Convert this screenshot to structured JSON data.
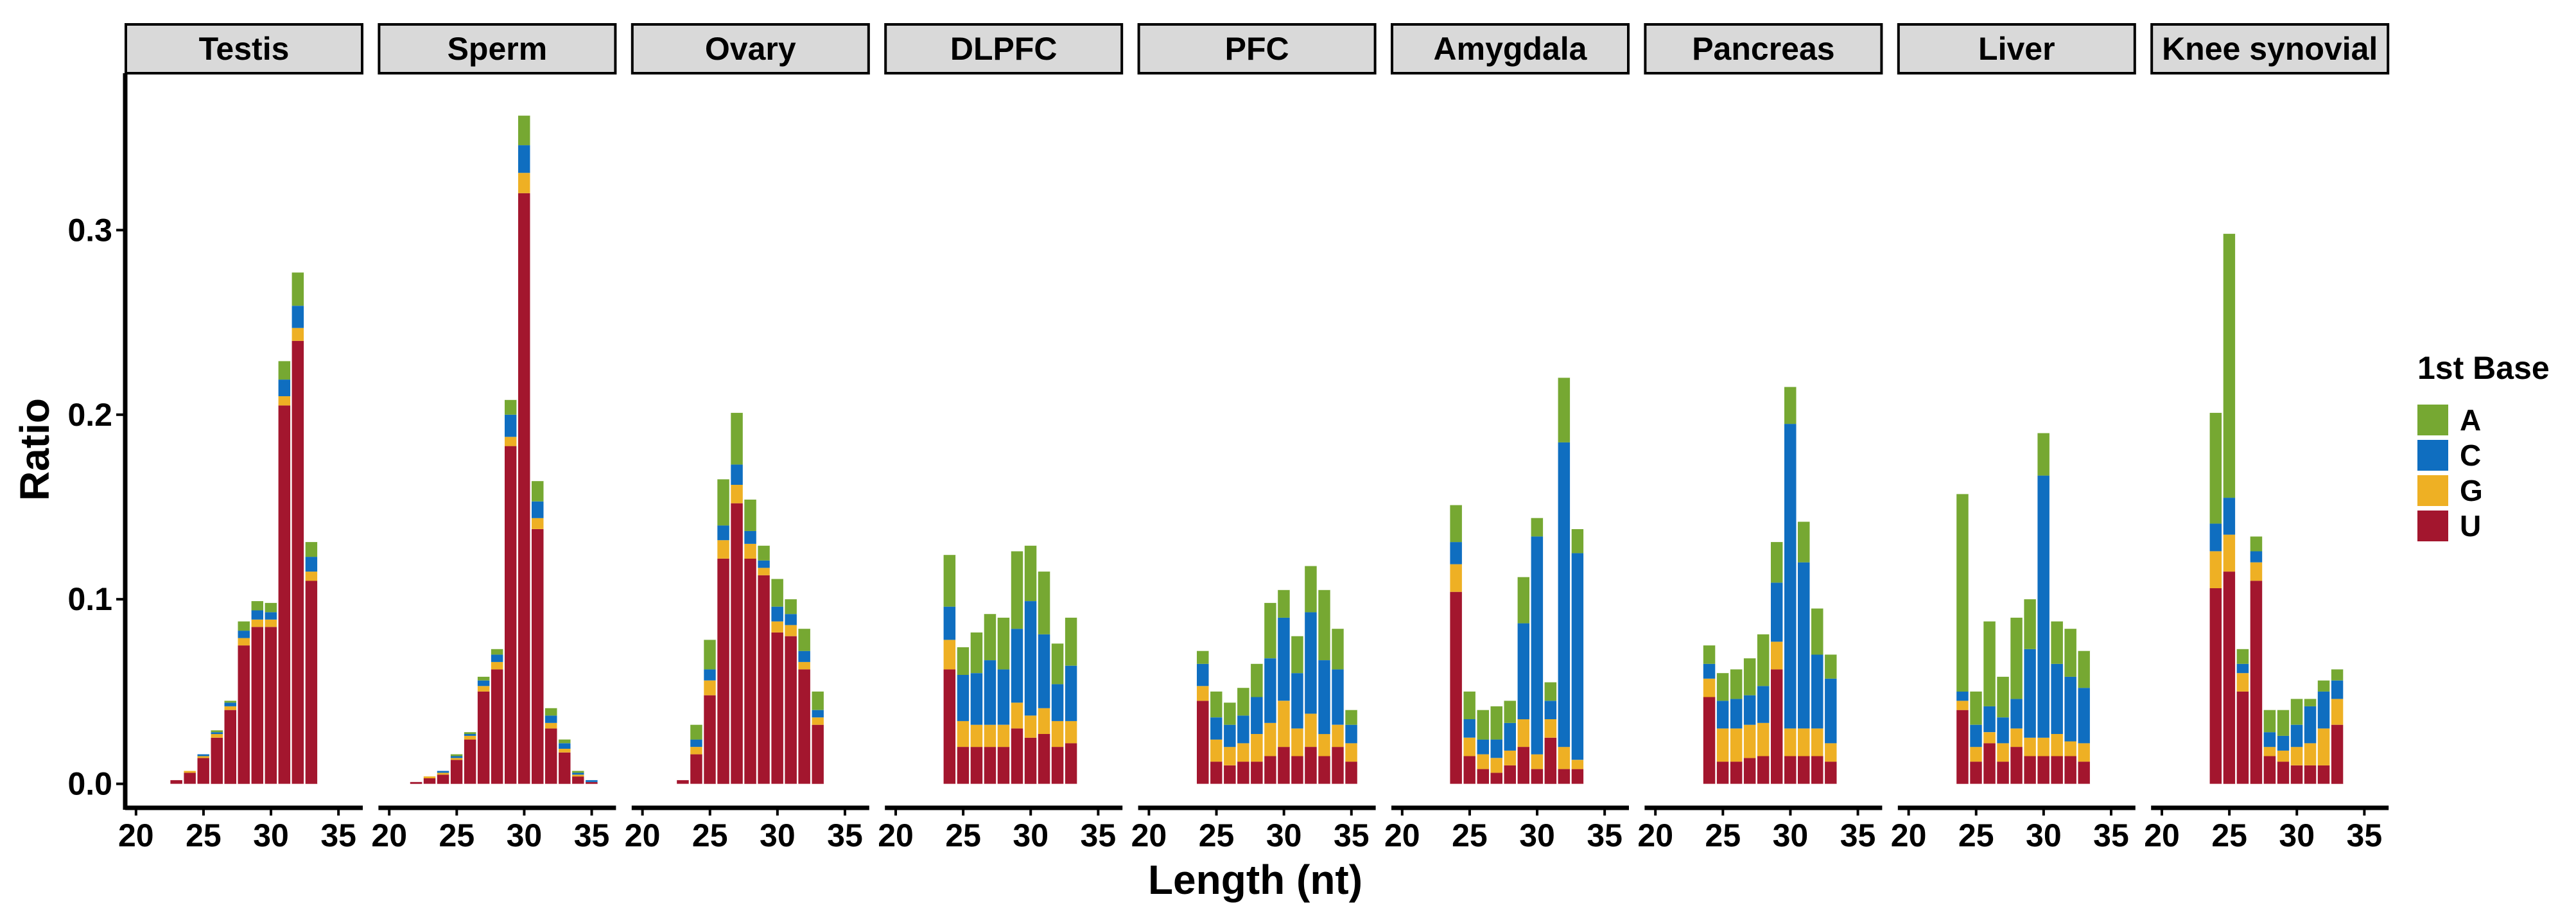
{
  "chart_data": {
    "type": "stacked_bar_faceted",
    "xlabel": "Length (nt)",
    "ylabel": "Ratio",
    "ylim": [
      -0.013,
      0.385
    ],
    "yticks": [
      0.0,
      0.1,
      0.2,
      0.3
    ],
    "ytick_labels": [
      "0.0",
      "0.1",
      "0.2",
      "0.3"
    ],
    "xlim": [
      19.2,
      36.8
    ],
    "xticks": [
      20,
      25,
      30,
      35
    ],
    "xtick_labels": [
      "20",
      "25",
      "30",
      "35"
    ],
    "legend": {
      "title": "1st Base",
      "position": "right",
      "items": [
        {
          "label": "A",
          "color": "#76A832"
        },
        {
          "label": "C",
          "color": "#0F6EC0"
        },
        {
          "label": "G",
          "color": "#EEB024"
        },
        {
          "label": "U",
          "color": "#A3162E"
        }
      ]
    },
    "series_order": [
      "U",
      "G",
      "C",
      "A"
    ],
    "facets": [
      {
        "name": "Testis",
        "bars": [
          {
            "x": 23,
            "U": 0.002,
            "G": 0,
            "C": 0,
            "A": 0
          },
          {
            "x": 24,
            "U": 0.006,
            "G": 0.001,
            "C": 0,
            "A": 0
          },
          {
            "x": 25,
            "U": 0.014,
            "G": 0.001,
            "C": 0.001,
            "A": 0
          },
          {
            "x": 26,
            "U": 0.025,
            "G": 0.002,
            "C": 0.001,
            "A": 0.001
          },
          {
            "x": 27,
            "U": 0.04,
            "G": 0.002,
            "C": 0.002,
            "A": 0.001
          },
          {
            "x": 28,
            "U": 0.075,
            "G": 0.004,
            "C": 0.004,
            "A": 0.005
          },
          {
            "x": 29,
            "U": 0.085,
            "G": 0.004,
            "C": 0.005,
            "A": 0.005
          },
          {
            "x": 30,
            "U": 0.085,
            "G": 0.004,
            "C": 0.004,
            "A": 0.005
          },
          {
            "x": 31,
            "U": 0.205,
            "G": 0.005,
            "C": 0.009,
            "A": 0.01
          },
          {
            "x": 32,
            "U": 0.24,
            "G": 0.007,
            "C": 0.012,
            "A": 0.018
          },
          {
            "x": 33,
            "U": 0.11,
            "G": 0.005,
            "C": 0.008,
            "A": 0.008
          }
        ]
      },
      {
        "name": "Sperm",
        "bars": [
          {
            "x": 22,
            "U": 0.001,
            "G": 0,
            "C": 0,
            "A": 0
          },
          {
            "x": 23,
            "U": 0.003,
            "G": 0.001,
            "C": 0,
            "A": 0
          },
          {
            "x": 24,
            "U": 0.005,
            "G": 0.001,
            "C": 0.001,
            "A": 0
          },
          {
            "x": 25,
            "U": 0.013,
            "G": 0.001,
            "C": 0.001,
            "A": 0.001
          },
          {
            "x": 26,
            "U": 0.024,
            "G": 0.002,
            "C": 0.001,
            "A": 0.001
          },
          {
            "x": 27,
            "U": 0.05,
            "G": 0.003,
            "C": 0.003,
            "A": 0.002
          },
          {
            "x": 28,
            "U": 0.062,
            "G": 0.004,
            "C": 0.004,
            "A": 0.003
          },
          {
            "x": 29,
            "U": 0.183,
            "G": 0.005,
            "C": 0.012,
            "A": 0.008
          },
          {
            "x": 30,
            "U": 0.32,
            "G": 0.011,
            "C": 0.015,
            "A": 0.016
          },
          {
            "x": 31,
            "U": 0.138,
            "G": 0.006,
            "C": 0.009,
            "A": 0.011
          },
          {
            "x": 32,
            "U": 0.03,
            "G": 0.003,
            "C": 0.004,
            "A": 0.004
          },
          {
            "x": 33,
            "U": 0.017,
            "G": 0.002,
            "C": 0.003,
            "A": 0.002
          },
          {
            "x": 34,
            "U": 0.004,
            "G": 0.001,
            "C": 0.001,
            "A": 0.001
          },
          {
            "x": 35,
            "U": 0.001,
            "G": 0,
            "C": 0.001,
            "A": 0
          }
        ]
      },
      {
        "name": "Ovary",
        "bars": [
          {
            "x": 23,
            "U": 0.002,
            "G": 0,
            "C": 0,
            "A": 0
          },
          {
            "x": 24,
            "U": 0.016,
            "G": 0.004,
            "C": 0.004,
            "A": 0.008
          },
          {
            "x": 25,
            "U": 0.048,
            "G": 0.008,
            "C": 0.006,
            "A": 0.016
          },
          {
            "x": 26,
            "U": 0.122,
            "G": 0.01,
            "C": 0.008,
            "A": 0.025
          },
          {
            "x": 27,
            "U": 0.152,
            "G": 0.01,
            "C": 0.011,
            "A": 0.028
          },
          {
            "x": 28,
            "U": 0.122,
            "G": 0.008,
            "C": 0.007,
            "A": 0.017
          },
          {
            "x": 29,
            "U": 0.113,
            "G": 0.004,
            "C": 0.004,
            "A": 0.008
          },
          {
            "x": 30,
            "U": 0.082,
            "G": 0.006,
            "C": 0.008,
            "A": 0.015
          },
          {
            "x": 31,
            "U": 0.08,
            "G": 0.006,
            "C": 0.006,
            "A": 0.008
          },
          {
            "x": 32,
            "U": 0.062,
            "G": 0.004,
            "C": 0.006,
            "A": 0.012
          },
          {
            "x": 33,
            "U": 0.032,
            "G": 0.004,
            "C": 0.004,
            "A": 0.01
          }
        ]
      },
      {
        "name": "DLPFC",
        "bars": [
          {
            "x": 24,
            "U": 0.062,
            "G": 0.016,
            "C": 0.018,
            "A": 0.028
          },
          {
            "x": 25,
            "U": 0.02,
            "G": 0.014,
            "C": 0.025,
            "A": 0.015
          },
          {
            "x": 26,
            "U": 0.02,
            "G": 0.012,
            "C": 0.028,
            "A": 0.022
          },
          {
            "x": 27,
            "U": 0.02,
            "G": 0.012,
            "C": 0.035,
            "A": 0.025
          },
          {
            "x": 28,
            "U": 0.02,
            "G": 0.012,
            "C": 0.03,
            "A": 0.028
          },
          {
            "x": 29,
            "U": 0.03,
            "G": 0.014,
            "C": 0.04,
            "A": 0.042
          },
          {
            "x": 30,
            "U": 0.025,
            "G": 0.012,
            "C": 0.062,
            "A": 0.03
          },
          {
            "x": 31,
            "U": 0.027,
            "G": 0.014,
            "C": 0.04,
            "A": 0.034
          },
          {
            "x": 32,
            "U": 0.02,
            "G": 0.014,
            "C": 0.02,
            "A": 0.022
          },
          {
            "x": 33,
            "U": 0.022,
            "G": 0.012,
            "C": 0.03,
            "A": 0.026
          }
        ]
      },
      {
        "name": "PFC",
        "bars": [
          {
            "x": 24,
            "U": 0.045,
            "G": 0.008,
            "C": 0.012,
            "A": 0.007
          },
          {
            "x": 25,
            "U": 0.012,
            "G": 0.012,
            "C": 0.012,
            "A": 0.014
          },
          {
            "x": 26,
            "U": 0.01,
            "G": 0.01,
            "C": 0.012,
            "A": 0.012
          },
          {
            "x": 27,
            "U": 0.012,
            "G": 0.01,
            "C": 0.015,
            "A": 0.015
          },
          {
            "x": 28,
            "U": 0.012,
            "G": 0.015,
            "C": 0.02,
            "A": 0.018
          },
          {
            "x": 29,
            "U": 0.015,
            "G": 0.018,
            "C": 0.035,
            "A": 0.03
          },
          {
            "x": 30,
            "U": 0.02,
            "G": 0.025,
            "C": 0.045,
            "A": 0.015
          },
          {
            "x": 31,
            "U": 0.015,
            "G": 0.015,
            "C": 0.03,
            "A": 0.02
          },
          {
            "x": 32,
            "U": 0.02,
            "G": 0.018,
            "C": 0.055,
            "A": 0.025
          },
          {
            "x": 33,
            "U": 0.015,
            "G": 0.012,
            "C": 0.04,
            "A": 0.038
          },
          {
            "x": 34,
            "U": 0.02,
            "G": 0.012,
            "C": 0.03,
            "A": 0.022
          },
          {
            "x": 35,
            "U": 0.012,
            "G": 0.01,
            "C": 0.01,
            "A": 0.008
          }
        ]
      },
      {
        "name": "Amygdala",
        "bars": [
          {
            "x": 24,
            "U": 0.104,
            "G": 0.015,
            "C": 0.012,
            "A": 0.02
          },
          {
            "x": 25,
            "U": 0.015,
            "G": 0.01,
            "C": 0.01,
            "A": 0.015
          },
          {
            "x": 26,
            "U": 0.008,
            "G": 0.008,
            "C": 0.008,
            "A": 0.016
          },
          {
            "x": 27,
            "U": 0.006,
            "G": 0.008,
            "C": 0.01,
            "A": 0.018
          },
          {
            "x": 28,
            "U": 0.01,
            "G": 0.008,
            "C": 0.015,
            "A": 0.012
          },
          {
            "x": 29,
            "U": 0.02,
            "G": 0.015,
            "C": 0.052,
            "A": 0.025
          },
          {
            "x": 30,
            "U": 0.008,
            "G": 0.008,
            "C": 0.118,
            "A": 0.01
          },
          {
            "x": 31,
            "U": 0.025,
            "G": 0.01,
            "C": 0.01,
            "A": 0.01
          },
          {
            "x": 32,
            "U": 0.008,
            "G": 0.012,
            "C": 0.165,
            "A": 0.035
          },
          {
            "x": 33,
            "U": 0.008,
            "G": 0.005,
            "C": 0.112,
            "A": 0.013
          }
        ]
      },
      {
        "name": "Pancreas",
        "bars": [
          {
            "x": 24,
            "U": 0.047,
            "G": 0.01,
            "C": 0.008,
            "A": 0.01
          },
          {
            "x": 25,
            "U": 0.012,
            "G": 0.018,
            "C": 0.015,
            "A": 0.015
          },
          {
            "x": 26,
            "U": 0.012,
            "G": 0.018,
            "C": 0.016,
            "A": 0.016
          },
          {
            "x": 27,
            "U": 0.014,
            "G": 0.018,
            "C": 0.016,
            "A": 0.02
          },
          {
            "x": 28,
            "U": 0.015,
            "G": 0.018,
            "C": 0.02,
            "A": 0.028
          },
          {
            "x": 29,
            "U": 0.062,
            "G": 0.015,
            "C": 0.032,
            "A": 0.022
          },
          {
            "x": 30,
            "U": 0.015,
            "G": 0.015,
            "C": 0.165,
            "A": 0.02
          },
          {
            "x": 31,
            "U": 0.015,
            "G": 0.015,
            "C": 0.09,
            "A": 0.022
          },
          {
            "x": 32,
            "U": 0.015,
            "G": 0.015,
            "C": 0.04,
            "A": 0.025
          },
          {
            "x": 33,
            "U": 0.012,
            "G": 0.01,
            "C": 0.035,
            "A": 0.013
          }
        ]
      },
      {
        "name": "Liver",
        "bars": [
          {
            "x": 24,
            "U": 0.04,
            "G": 0.005,
            "C": 0.005,
            "A": 0.107
          },
          {
            "x": 25,
            "U": 0.012,
            "G": 0.008,
            "C": 0.012,
            "A": 0.018
          },
          {
            "x": 26,
            "U": 0.022,
            "G": 0.006,
            "C": 0.014,
            "A": 0.046
          },
          {
            "x": 27,
            "U": 0.012,
            "G": 0.01,
            "C": 0.014,
            "A": 0.022
          },
          {
            "x": 28,
            "U": 0.02,
            "G": 0.01,
            "C": 0.016,
            "A": 0.044
          },
          {
            "x": 29,
            "U": 0.015,
            "G": 0.01,
            "C": 0.048,
            "A": 0.027
          },
          {
            "x": 30,
            "U": 0.015,
            "G": 0.01,
            "C": 0.142,
            "A": 0.023
          },
          {
            "x": 31,
            "U": 0.015,
            "G": 0.012,
            "C": 0.038,
            "A": 0.023
          },
          {
            "x": 32,
            "U": 0.015,
            "G": 0.008,
            "C": 0.035,
            "A": 0.026
          },
          {
            "x": 33,
            "U": 0.012,
            "G": 0.01,
            "C": 0.03,
            "A": 0.02
          }
        ]
      },
      {
        "name": "Knee synovial",
        "bars": [
          {
            "x": 24,
            "U": 0.106,
            "G": 0.02,
            "C": 0.015,
            "A": 0.06
          },
          {
            "x": 25,
            "U": 0.115,
            "G": 0.02,
            "C": 0.02,
            "A": 0.143
          },
          {
            "x": 26,
            "U": 0.05,
            "G": 0.01,
            "C": 0.005,
            "A": 0.008
          },
          {
            "x": 27,
            "U": 0.11,
            "G": 0.01,
            "C": 0.006,
            "A": 0.008
          },
          {
            "x": 28,
            "U": 0.015,
            "G": 0.005,
            "C": 0.008,
            "A": 0.012
          },
          {
            "x": 29,
            "U": 0.012,
            "G": 0.006,
            "C": 0.008,
            "A": 0.014
          },
          {
            "x": 30,
            "U": 0.01,
            "G": 0.01,
            "C": 0.012,
            "A": 0.014
          },
          {
            "x": 31,
            "U": 0.01,
            "G": 0.012,
            "C": 0.02,
            "A": 0.004
          },
          {
            "x": 32,
            "U": 0.01,
            "G": 0.02,
            "C": 0.02,
            "A": 0.006
          },
          {
            "x": 33,
            "U": 0.032,
            "G": 0.014,
            "C": 0.01,
            "A": 0.006
          }
        ]
      }
    ]
  }
}
